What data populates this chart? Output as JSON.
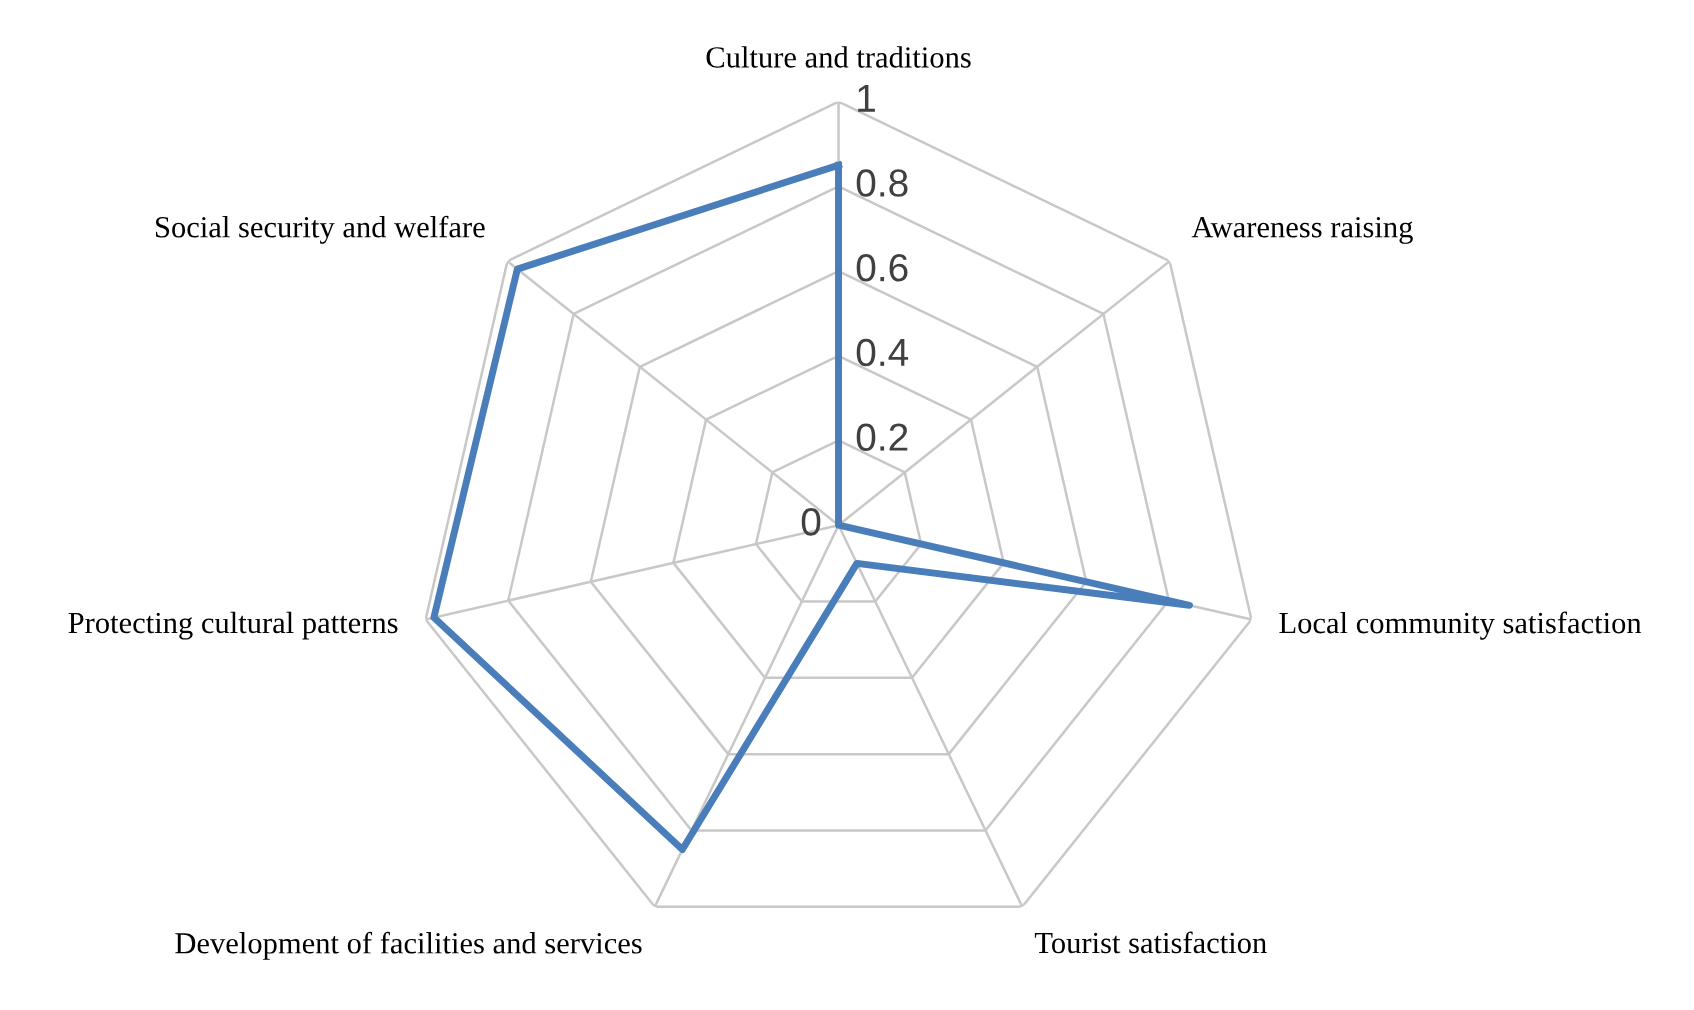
{
  "chart_data": {
    "type": "radar",
    "categories": [
      "Culture and traditions",
      "Awareness raising",
      "Local community satisfaction",
      "Tourist satisfaction",
      "Development of facilities and services",
      "Protecting cultural patterns",
      "Social security and welfare"
    ],
    "series": [
      {
        "color": "#4a7ebb",
        "values": [
          0.85,
          0.0,
          0.85,
          0.1,
          0.85,
          0.98,
          0.97
        ]
      }
    ],
    "ylim": [
      0,
      1
    ],
    "yticks": [
      0,
      0.2,
      0.4,
      0.6,
      0.8,
      1
    ],
    "grid": true,
    "marker": "none",
    "line_style": "solid"
  }
}
